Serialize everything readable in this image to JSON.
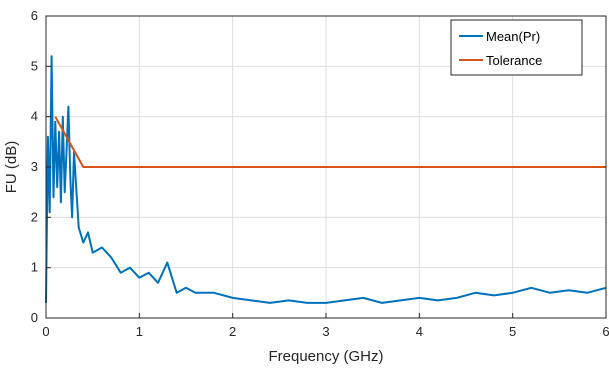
{
  "chart_data": {
    "type": "line",
    "xlabel": "Frequency (GHz)",
    "ylabel": "FU (dB)",
    "xlim": [
      0,
      6
    ],
    "ylim": [
      0,
      6
    ],
    "xticks": [
      "0",
      "1",
      "2",
      "3",
      "4",
      "5",
      "6"
    ],
    "yticks": [
      "0",
      "1",
      "2",
      "3",
      "4",
      "5",
      "6"
    ],
    "grid": true,
    "legend_position": "top-right",
    "series": [
      {
        "name": "Mean(Pr)",
        "color": "#0072BD",
        "x": [
          0,
          0.02,
          0.04,
          0.06,
          0.08,
          0.1,
          0.12,
          0.14,
          0.16,
          0.18,
          0.2,
          0.22,
          0.24,
          0.26,
          0.28,
          0.3,
          0.35,
          0.4,
          0.45,
          0.5,
          0.6,
          0.7,
          0.8,
          0.9,
          1.0,
          1.1,
          1.2,
          1.3,
          1.4,
          1.5,
          1.6,
          1.8,
          2.0,
          2.2,
          2.4,
          2.6,
          2.8,
          3.0,
          3.2,
          3.4,
          3.6,
          3.8,
          4.0,
          4.2,
          4.4,
          4.6,
          4.8,
          5.0,
          5.2,
          5.4,
          5.6,
          5.8,
          6.0
        ],
        "y": [
          0.3,
          3.6,
          2.1,
          5.2,
          2.4,
          3.9,
          2.6,
          3.7,
          2.3,
          4.0,
          2.5,
          3.3,
          4.2,
          2.8,
          2.0,
          3.3,
          1.8,
          1.5,
          1.7,
          1.3,
          1.4,
          1.2,
          0.9,
          1.0,
          0.8,
          0.9,
          0.7,
          1.1,
          0.5,
          0.6,
          0.5,
          0.5,
          0.4,
          0.35,
          0.3,
          0.35,
          0.3,
          0.3,
          0.35,
          0.4,
          0.3,
          0.35,
          0.4,
          0.35,
          0.4,
          0.5,
          0.45,
          0.5,
          0.6,
          0.5,
          0.55,
          0.5,
          0.6
        ]
      },
      {
        "name": "Tolerance",
        "color": "#D95319",
        "x": [
          0.1,
          0.4,
          6.0
        ],
        "y": [
          4.0,
          3.0,
          3.0
        ]
      }
    ]
  }
}
